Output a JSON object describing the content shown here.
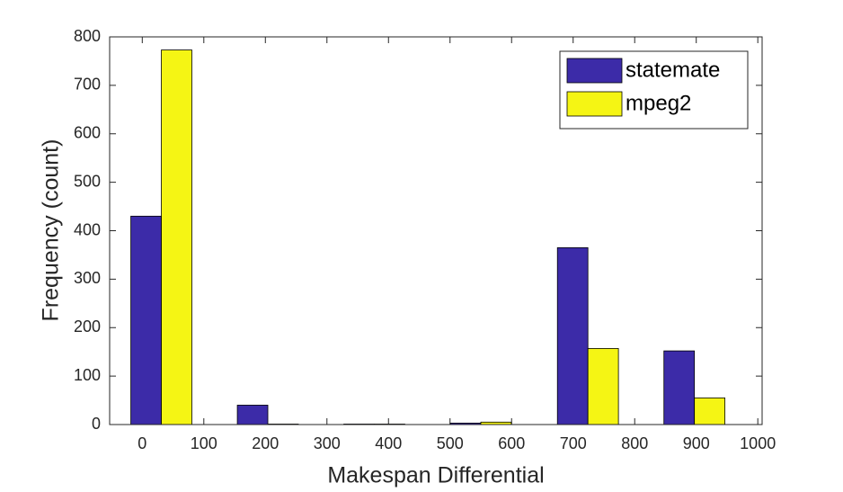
{
  "chart_data": {
    "type": "bar",
    "x": [
      31,
      204,
      377,
      550,
      724,
      897
    ],
    "series": [
      {
        "name": "statemate",
        "color": "#3c2ba8",
        "values": [
          430,
          40,
          1,
          3,
          365,
          152
        ]
      },
      {
        "name": "mpeg2",
        "color": "#f5f514",
        "values": [
          773,
          1,
          1,
          5,
          157,
          55
        ]
      }
    ],
    "xlabel": "Makespan Differential",
    "ylabel": "Frequency (count)",
    "xlim": [
      -53,
      1007
    ],
    "xticks": [
      0,
      100,
      200,
      300,
      400,
      500,
      600,
      700,
      800,
      900,
      1000
    ],
    "ylim": [
      0,
      800
    ],
    "yticks": [
      0,
      100,
      200,
      300,
      400,
      500,
      600,
      700,
      800
    ],
    "legend": "northeast",
    "grid": false
  }
}
